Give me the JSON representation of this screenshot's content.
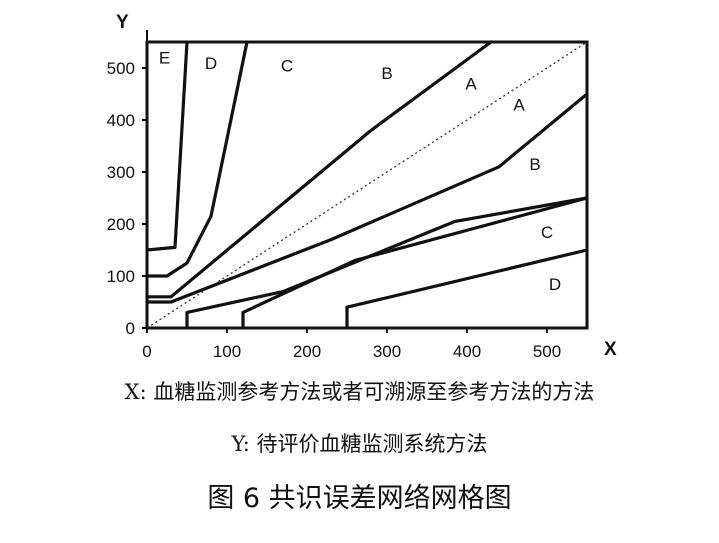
{
  "figure": {
    "y_axis_letter": "Y",
    "x_axis_letter": "X",
    "x_ticks": [
      "0",
      "100",
      "200",
      "300",
      "400",
      "500"
    ],
    "y_ticks": [
      "0",
      "100",
      "200",
      "300",
      "400",
      "500"
    ],
    "zone_labels": [
      "E",
      "D",
      "C",
      "B",
      "A",
      "A",
      "B",
      "C",
      "D"
    ]
  },
  "captions": {
    "x_desc": "X:  血糖监测参考方法或者可溯源至参考方法的方法",
    "y_desc": "Y:  待评价血糖监测系统方法",
    "title": "图 6  共识误差网络网格图"
  },
  "chart_data": {
    "type": "line",
    "xlabel": "X",
    "ylabel": "Y",
    "xlim": [
      0,
      550
    ],
    "ylim": [
      0,
      550
    ],
    "grid": false,
    "identity_line": {
      "style": "dotted",
      "points": [
        [
          0,
          0
        ],
        [
          550,
          550
        ]
      ]
    },
    "series": [
      {
        "points": [
          [
            0,
            150
          ],
          [
            35,
            155
          ],
          [
            50,
            550
          ]
        ]
      },
      {
        "points": [
          [
            0,
            100
          ],
          [
            25,
            100
          ],
          [
            50,
            125
          ],
          [
            80,
            215
          ],
          [
            125,
            550
          ]
        ]
      },
      {
        "points": [
          [
            0,
            60
          ],
          [
            30,
            60
          ],
          [
            280,
            380
          ],
          [
            430,
            550
          ]
        ]
      },
      {
        "points": [
          [
            0,
            50
          ],
          [
            30,
            50
          ],
          [
            230,
            170
          ],
          [
            440,
            310
          ],
          [
            550,
            450
          ]
        ]
      },
      {
        "points": [
          [
            50,
            0
          ],
          [
            50,
            30
          ],
          [
            170,
            70
          ],
          [
            385,
            205
          ],
          [
            550,
            250
          ]
        ]
      },
      {
        "points": [
          [
            120,
            0
          ],
          [
            120,
            30
          ],
          [
            260,
            130
          ],
          [
            550,
            250
          ]
        ]
      },
      {
        "points": [
          [
            250,
            0
          ],
          [
            250,
            40
          ],
          [
            550,
            150
          ]
        ]
      }
    ]
  }
}
